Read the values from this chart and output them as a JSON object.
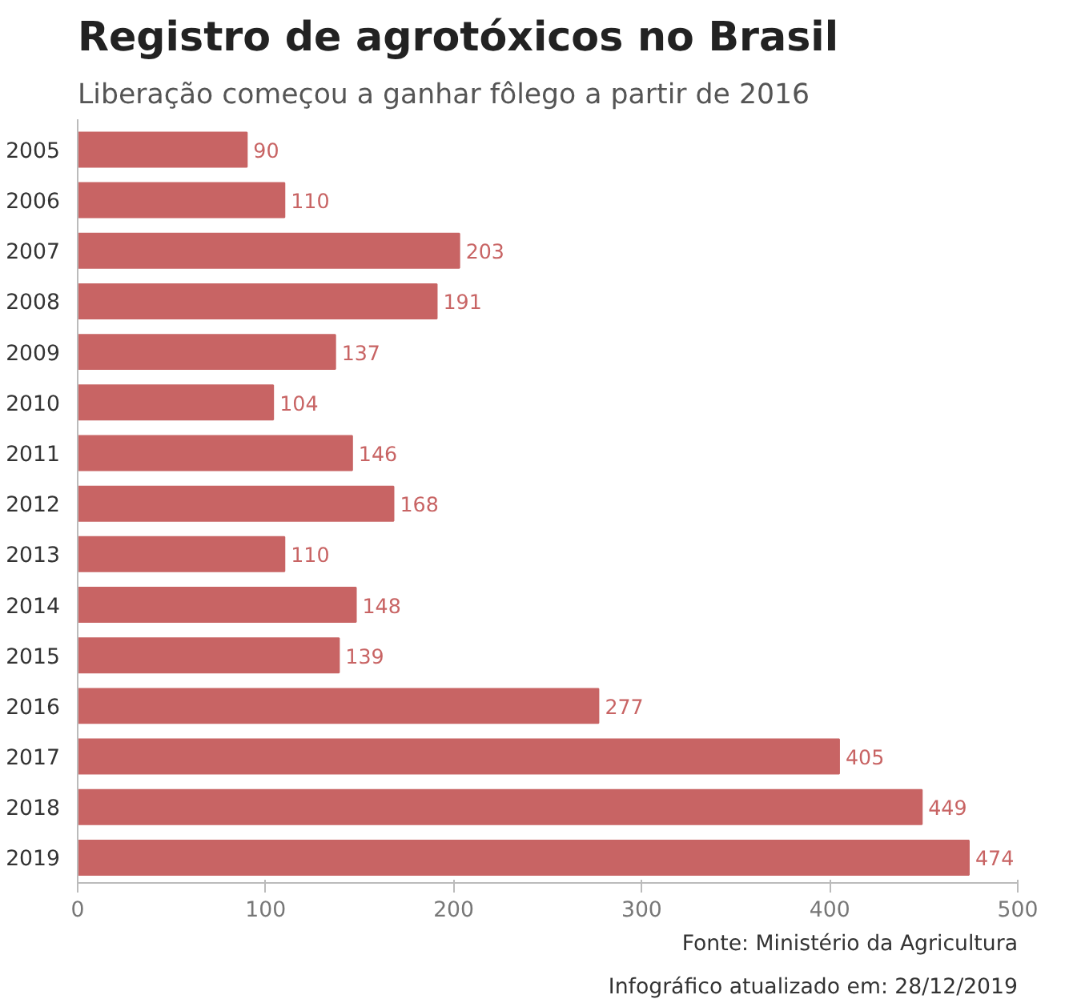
{
  "chart_data": {
    "type": "bar",
    "orientation": "horizontal",
    "title": "Registro de agrotóxicos no Brasil",
    "subtitle": "Liberação começou a ganhar fôlego a partir de 2016",
    "categories": [
      "2005",
      "2006",
      "2007",
      "2008",
      "2009",
      "2010",
      "2011",
      "2012",
      "2013",
      "2014",
      "2015",
      "2016",
      "2017",
      "2018",
      "2019"
    ],
    "values": [
      90,
      110,
      203,
      191,
      137,
      104,
      146,
      168,
      110,
      148,
      139,
      277,
      405,
      449,
      474
    ],
    "color": "#c86464",
    "xlim": [
      0,
      500
    ],
    "xticks": [
      0,
      100,
      200,
      300,
      400,
      500
    ],
    "grid": false,
    "data_labels": true,
    "annotations": [
      "Fonte: Ministério da Agricultura",
      "Infográfico atualizado em: 28/12/2019"
    ]
  }
}
